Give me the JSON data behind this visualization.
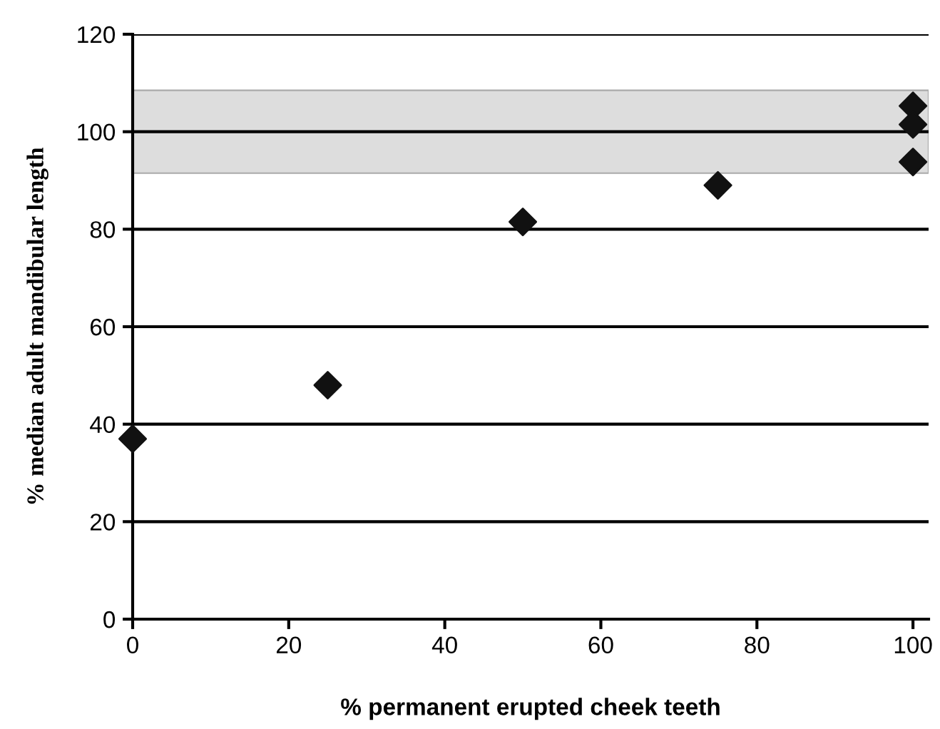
{
  "chart_data": {
    "type": "scatter",
    "xlabel": "% permanent erupted cheek teeth",
    "ylabel": "% median adult mandibular length",
    "x": [
      0,
      25,
      50,
      75,
      100,
      100,
      100
    ],
    "values": [
      37,
      48,
      81.5,
      89,
      105.3,
      101.5,
      93.8
    ],
    "color": "#111111",
    "marker": "diamond",
    "xlim": [
      0,
      102
    ],
    "ylim": [
      0,
      120
    ],
    "xticks": [
      0,
      20,
      40,
      60,
      80,
      100
    ],
    "yticks": [
      0,
      20,
      40,
      60,
      80,
      100,
      120
    ],
    "grid": "y",
    "legend": false,
    "bands": [
      {
        "axis": "y",
        "from": 91.5,
        "to": 108.5,
        "color": "#dddddd"
      }
    ]
  }
}
